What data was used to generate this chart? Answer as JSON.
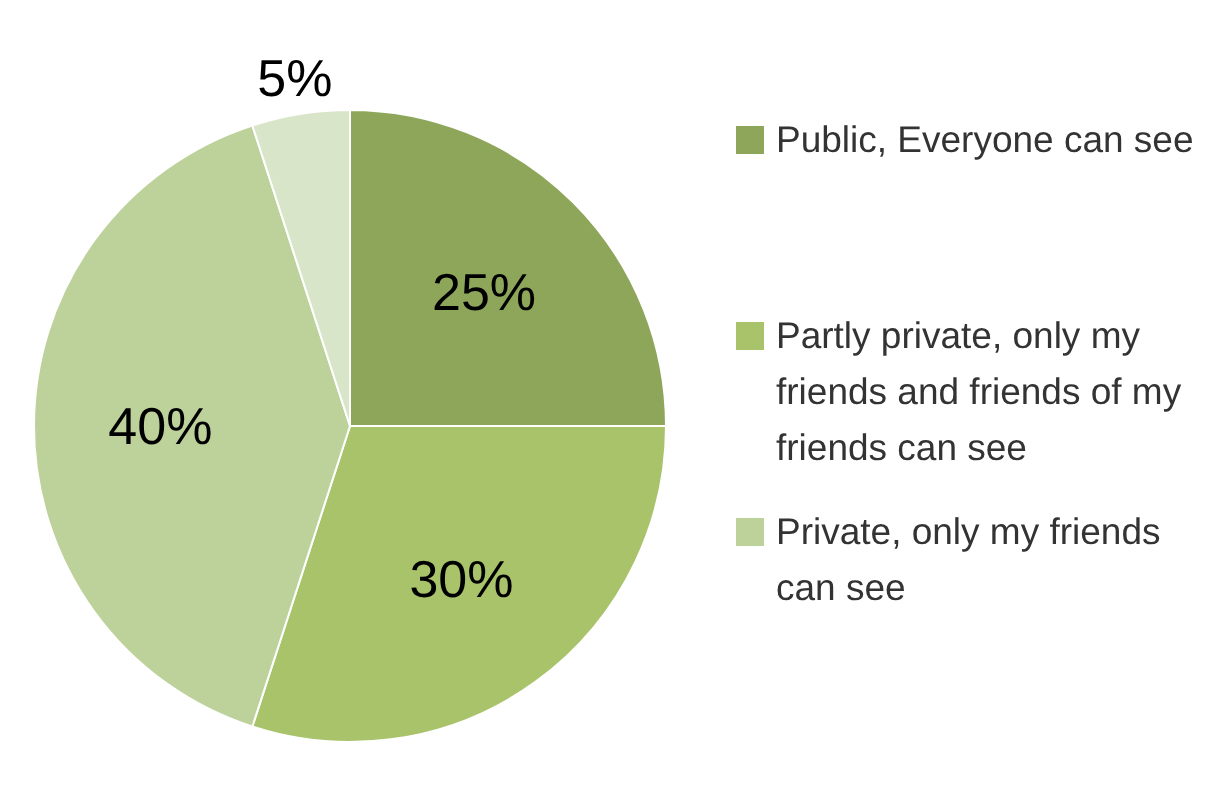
{
  "chart_data": {
    "type": "pie",
    "categories": [
      "Public, Everyone can see",
      "Partly private, only my friends and friends of my friends can see",
      "Private, only my friends can see",
      null
    ],
    "values": [
      25,
      30,
      40,
      5
    ],
    "colors": [
      "#8ea65a",
      "#a9c36b",
      "#bdd29a",
      "#d9e5c8"
    ],
    "value_labels": [
      "25%",
      "30%",
      "40%",
      "5%"
    ],
    "legend": "right"
  }
}
